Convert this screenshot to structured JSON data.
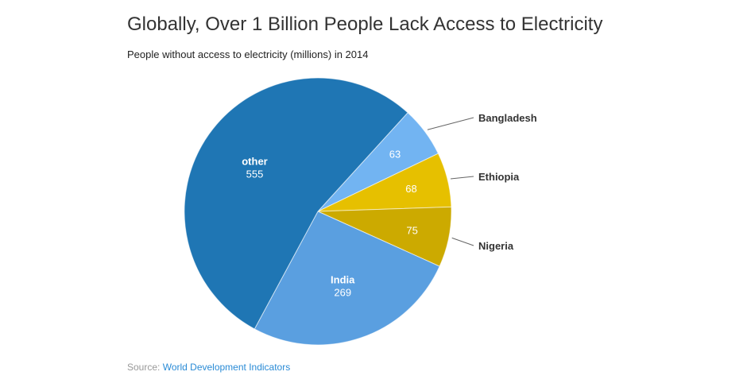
{
  "chart_data": {
    "type": "pie",
    "title": "Globally, Over 1 Billion People Lack Access to Electricity",
    "subtitle": "People without access to electricity (millions) in 2014",
    "slices": [
      {
        "label": "Bangladesh",
        "value": 63,
        "color": "#72b4f2",
        "label_outside": true
      },
      {
        "label": "Ethiopia",
        "value": 68,
        "color": "#e6c000",
        "label_outside": true
      },
      {
        "label": "Nigeria",
        "value": 75,
        "color": "#ccaa00",
        "label_outside": true
      },
      {
        "label": "India",
        "value": 269,
        "color": "#5a9fe0",
        "label_outside": false
      },
      {
        "label": "other",
        "value": 555,
        "color": "#1f76b4",
        "label_outside": false
      }
    ],
    "source_label": "Source:",
    "source_link": "World Development Indicators"
  }
}
